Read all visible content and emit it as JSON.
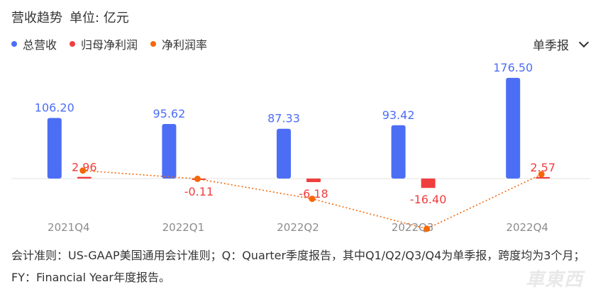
{
  "header": {
    "title": "营收趋势",
    "unit": "单位: 亿元"
  },
  "legend": [
    {
      "label": "总营收",
      "color": "#4c6ef5"
    },
    {
      "label": "归母净利润",
      "color": "#f03e3e"
    },
    {
      "label": "净利润率",
      "color": "#f76707"
    }
  ],
  "period_selector": {
    "value": "单季报",
    "icon": "chevron-down-icon"
  },
  "chart_data": {
    "type": "bar",
    "categories": [
      "2021Q4",
      "2022Q1",
      "2022Q2",
      "2022Q3",
      "2022Q4"
    ],
    "series": [
      {
        "name": "总营收",
        "type": "bar",
        "color": "#4c6ef5",
        "values": [
          106.2,
          95.62,
          87.33,
          93.42,
          176.5
        ],
        "labels": [
          "106.20",
          "95.62",
          "87.33",
          "93.42",
          "176.50"
        ]
      },
      {
        "name": "归母净利润",
        "type": "bar",
        "color": "#f03e3e",
        "values": [
          2.96,
          -0.11,
          -6.18,
          -16.4,
          2.57
        ],
        "labels": [
          "2.96",
          "-0.11",
          "-6.18",
          "-16.40",
          "2.57"
        ]
      },
      {
        "name": "净利润率",
        "type": "line",
        "style": "dotted",
        "color": "#f76707",
        "values": [
          2.8,
          -0.1,
          -7.1,
          -17.6,
          1.5
        ],
        "unit": "%"
      }
    ],
    "ylim": [
      -20,
      180
    ],
    "grid": false,
    "legend_position": "top-left"
  },
  "footnote": "会计准则：US-GAAP美国通用会计准则；Q：Quarter季度报告，其中Q1/Q2/Q3/Q4为单季报，跨度均为3个月；FY：Financial Year年度报告。",
  "watermark": "車東西"
}
